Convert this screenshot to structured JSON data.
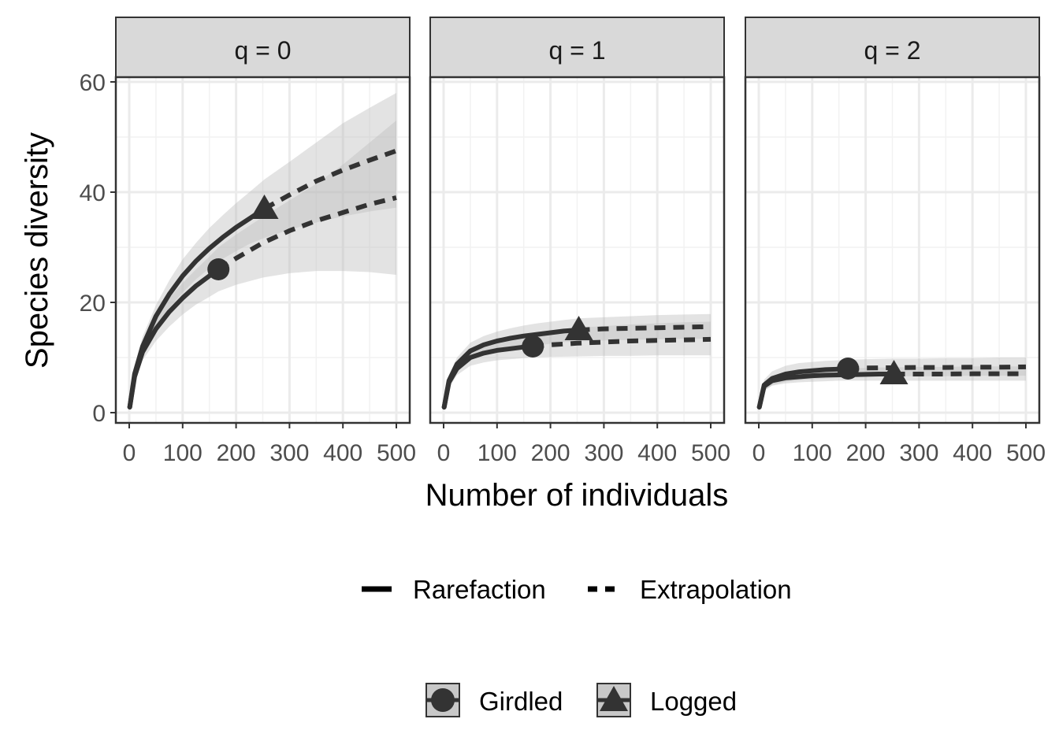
{
  "chart_data": {
    "type": "line",
    "xlabel": "Number of individuals",
    "ylabel": "Species diversity",
    "xlim": [
      0,
      500
    ],
    "ylim": [
      0,
      60
    ],
    "x_ticks": [
      0,
      100,
      200,
      300,
      400,
      500
    ],
    "y_ticks": [
      0,
      20,
      40,
      60
    ],
    "grid": true,
    "legend_placement": "bottom",
    "line_color": "#333333",
    "band_color": "#bdbdbd",
    "panels": [
      {
        "label": "q = 0",
        "series": [
          {
            "name": "Girdled",
            "observed": {
              "x": 167,
              "y": 26
            },
            "rarefaction": {
              "x": [
                1,
                10,
                25,
                50,
                75,
                100,
                125,
                150,
                167
              ],
              "y": [
                1,
                6.5,
                11,
                15.2,
                18.3,
                20.8,
                23,
                24.8,
                26
              ]
            },
            "extrapolation": {
              "x": [
                167,
                200,
                250,
                300,
                350,
                400,
                450,
                500
              ],
              "y": [
                26,
                28,
                30.8,
                33,
                34.8,
                36.3,
                37.8,
                39
              ]
            },
            "ci_upper": [
              1.5,
              8,
              13,
              17.5,
              20.8,
              23.5,
              26,
              28.3,
              30,
              32.3,
              35.5,
              38.5,
              41.5,
              45,
              49,
              53
            ],
            "ci_lower": [
              0.5,
              5.5,
              9.5,
              13,
              15.6,
              17.8,
              19.6,
              21,
              22,
              23.2,
              24.5,
              25.3,
              25.7,
              25.7,
              25.5,
              25
            ]
          },
          {
            "name": "Logged",
            "observed": {
              "x": 253,
              "y": 37
            },
            "rarefaction": {
              "x": [
                1,
                10,
                25,
                50,
                75,
                100,
                125,
                150,
                175,
                200,
                225,
                253
              ],
              "y": [
                1,
                7,
                12,
                17.5,
                21.5,
                24.8,
                27.5,
                29.8,
                31.8,
                33.6,
                35.2,
                37
              ]
            },
            "extrapolation": {
              "x": [
                253,
                300,
                350,
                400,
                450,
                500
              ],
              "y": [
                37,
                39.5,
                42,
                44,
                45.8,
                47.5
              ]
            },
            "ci_upper": [
              1.5,
              8.5,
              13.8,
              19.5,
              24,
              27.8,
              30.8,
              33.5,
              35.8,
              38,
              40,
              42.3,
              45.5,
              49,
              52.5,
              55.3,
              58
            ],
            "ci_lower": [
              0.5,
              5.8,
              10.2,
              15.5,
              19,
              21.8,
              24.2,
              26.2,
              27.9,
              29.3,
              30.6,
              31.7,
              33.2,
              34.5,
              35.6,
              36.5,
              37.2
            ]
          }
        ]
      },
      {
        "label": "q = 1",
        "series": [
          {
            "name": "Girdled",
            "observed": {
              "x": 167,
              "y": 12
            },
            "rarefaction": {
              "x": [
                1,
                10,
                25,
                50,
                75,
                100,
                125,
                150,
                167
              ],
              "y": [
                1,
                5.5,
                8,
                10,
                10.8,
                11.3,
                11.6,
                11.9,
                12
              ]
            },
            "extrapolation": {
              "x": [
                167,
                200,
                250,
                300,
                350,
                400,
                450,
                500
              ],
              "y": [
                12,
                12.3,
                12.6,
                12.8,
                13,
                13.1,
                13.2,
                13.3
              ]
            },
            "ci_upper": [
              1.5,
              6.5,
              9.2,
              11.5,
              12.6,
              13.3,
              13.8,
              14.2,
              14.5,
              14.9,
              15.4,
              15.7,
              16,
              16.2,
              16.4,
              16.5
            ],
            "ci_lower": [
              0.5,
              4.5,
              6.8,
              8.5,
              9.1,
              9.5,
              9.7,
              9.9,
              10,
              10.1,
              10.2,
              10.3,
              10.3,
              10.4,
              10.4,
              10.4
            ]
          },
          {
            "name": "Logged",
            "observed": {
              "x": 253,
              "y": 15
            },
            "rarefaction": {
              "x": [
                1,
                10,
                25,
                50,
                75,
                100,
                125,
                150,
                175,
                200,
                225,
                253
              ],
              "y": [
                1,
                5.8,
                8.8,
                11.2,
                12.3,
                13,
                13.5,
                13.9,
                14.2,
                14.5,
                14.8,
                15
              ]
            },
            "extrapolation": {
              "x": [
                253,
                300,
                350,
                400,
                450,
                500
              ],
              "y": [
                15,
                15.2,
                15.3,
                15.4,
                15.5,
                15.6
              ]
            },
            "ci_upper": [
              1.5,
              6.8,
              10,
              12.7,
              13.9,
              14.7,
              15.3,
              15.8,
              16.2,
              16.5,
              16.8,
              17.1,
              17.3,
              17.5,
              17.7,
              17.8,
              17.9
            ],
            "ci_lower": [
              0.5,
              4.8,
              7.6,
              9.7,
              10.7,
              11.3,
              11.7,
              12,
              12.2,
              12.5,
              12.8,
              12.9,
              13.1,
              13.2,
              13.3,
              13.4,
              13.4
            ]
          }
        ]
      },
      {
        "label": "q = 2",
        "series": [
          {
            "name": "Girdled",
            "observed": {
              "x": 167,
              "y": 8
            },
            "rarefaction": {
              "x": [
                1,
                10,
                25,
                50,
                75,
                100,
                125,
                150,
                167
              ],
              "y": [
                1,
                5,
                6.2,
                7,
                7.4,
                7.6,
                7.8,
                7.9,
                8
              ]
            },
            "extrapolation": {
              "x": [
                167,
                200,
                250,
                300,
                350,
                400,
                450,
                500
              ],
              "y": [
                8,
                8.1,
                8.15,
                8.2,
                8.2,
                8.25,
                8.25,
                8.3
              ]
            },
            "ci_upper": [
              1.5,
              6,
              7.5,
              8.5,
              9,
              9.2,
              9.4,
              9.5,
              9.6,
              9.7,
              9.8,
              9.8,
              9.9,
              9.9,
              10,
              10
            ],
            "ci_lower": [
              0.5,
              4,
              5,
              5.6,
              5.9,
              6.1,
              6.2,
              6.3,
              6.4,
              6.5,
              6.6,
              6.6,
              6.6,
              6.7,
              6.7,
              6.7
            ]
          },
          {
            "name": "Logged",
            "observed": {
              "x": 253,
              "y": 7
            },
            "rarefaction": {
              "x": [
                1,
                10,
                25,
                50,
                75,
                100,
                125,
                150,
                175,
                200,
                225,
                253
              ],
              "y": [
                1,
                4.8,
                5.8,
                6.3,
                6.5,
                6.7,
                6.8,
                6.85,
                6.9,
                6.95,
                7,
                7
              ]
            },
            "extrapolation": {
              "x": [
                253,
                300,
                350,
                400,
                450,
                500
              ],
              "y": [
                7,
                7,
                7,
                7.05,
                7.05,
                7.05
              ]
            },
            "ci_upper": [
              1.5,
              5.6,
              6.7,
              7.3,
              7.6,
              7.8,
              7.9,
              8,
              8.1,
              8.1,
              8.2,
              8.2,
              8.3,
              8.3,
              8.4,
              8.4,
              8.4
            ],
            "ci_lower": [
              0.5,
              4,
              4.9,
              5.3,
              5.5,
              5.6,
              5.7,
              5.8,
              5.8,
              5.8,
              5.8,
              5.8,
              5.8,
              5.8,
              5.8,
              5.8,
              5.8
            ]
          }
        ]
      }
    ],
    "legend_method": {
      "items": [
        {
          "name": "Rarefaction",
          "style": "solid"
        },
        {
          "name": "Extrapolation",
          "style": "dashed"
        }
      ]
    },
    "legend_assemblage": {
      "items": [
        {
          "name": "Girdled",
          "marker": "circle"
        },
        {
          "name": "Logged",
          "marker": "triangle"
        }
      ]
    }
  }
}
